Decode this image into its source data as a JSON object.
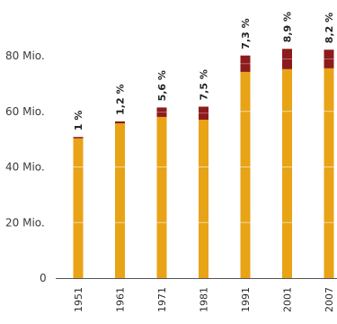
{
  "chart_data": {
    "type": "bar",
    "stacked": true,
    "categories": [
      "1951",
      "1961",
      "1971",
      "1981",
      "1991",
      "2001",
      "2007"
    ],
    "series": [
      {
        "values": [
          50.3,
          55.7,
          58.0,
          57.0,
          74.2,
          75.2,
          75.5
        ]
      },
      {
        "values": [
          0.5,
          0.7,
          3.4,
          4.7,
          5.9,
          7.3,
          6.7
        ]
      }
    ],
    "percent_labels": [
      "1 %",
      "1,2 %",
      "5,6 %",
      "7,5 %",
      "7,3 %",
      "8,9 %",
      "8,2 %"
    ],
    "y_ticks": [
      {
        "value": 0,
        "label": "0"
      },
      {
        "value": 20,
        "label": "20 Mio."
      },
      {
        "value": 40,
        "label": "40 Mio."
      },
      {
        "value": 60,
        "label": "60 Mio."
      },
      {
        "value": 80,
        "label": "80 Mio."
      }
    ],
    "ylim": [
      0,
      80
    ],
    "grid": true,
    "colors": {
      "base": "#e8a317",
      "share": "#8c1c1c",
      "segment_line": "#f3d9a0",
      "axis": "#555555"
    }
  }
}
